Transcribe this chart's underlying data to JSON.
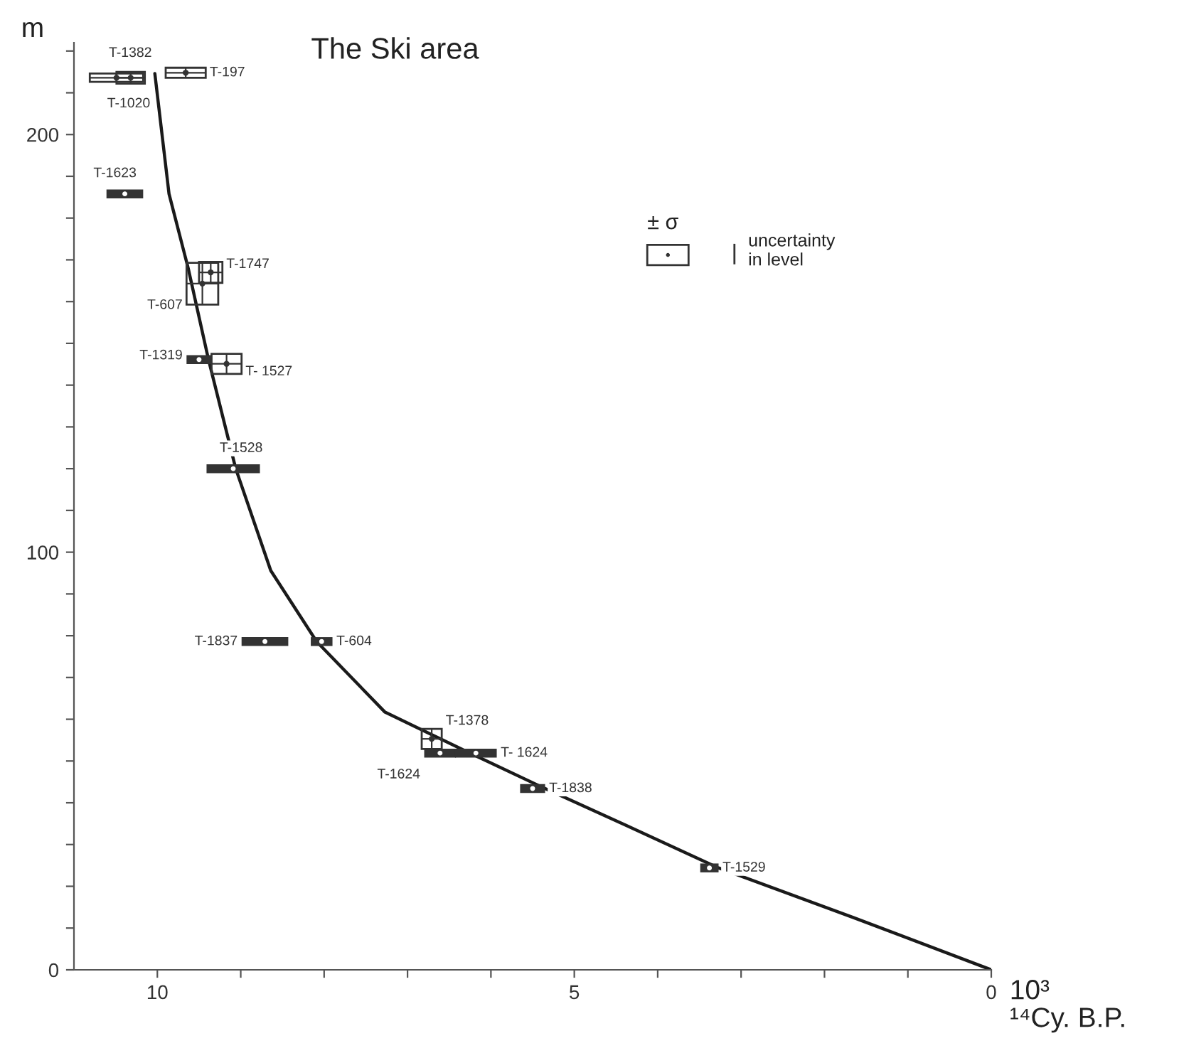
{
  "chart_data": {
    "type": "line",
    "title": "The Ski area",
    "ylabel": "m",
    "xlabel": "10³\n¹⁴Cy. B.P.",
    "xlim": [
      11.0,
      0
    ],
    "ylim": [
      0,
      222
    ],
    "xticks": [
      0,
      {
        "value": 1,
        "label": null
      },
      {
        "value": 2,
        "label": null
      },
      {
        "value": 3,
        "label": null
      },
      {
        "value": 4,
        "label": null
      },
      5,
      {
        "value": 6,
        "label": null
      },
      {
        "value": 7,
        "label": null
      },
      {
        "value": 8,
        "label": null
      },
      {
        "value": 9,
        "label": null
      },
      10
    ],
    "yticks": [
      0,
      {
        "value": 10,
        "label": null
      },
      {
        "value": 20,
        "label": null
      },
      {
        "value": 30,
        "label": null
      },
      {
        "value": 40,
        "label": null
      },
      {
        "value": 50,
        "label": null
      },
      {
        "value": 60,
        "label": null
      },
      {
        "value": 70,
        "label": null
      },
      {
        "value": 80,
        "label": null
      },
      {
        "value": 90,
        "label": null
      },
      100,
      {
        "value": 110,
        "label": null
      },
      {
        "value": 120,
        "label": null
      },
      {
        "value": 130,
        "label": null
      },
      {
        "value": 140,
        "label": null
      },
      {
        "value": 150,
        "label": null
      },
      {
        "value": 160,
        "label": null
      },
      {
        "value": 170,
        "label": null
      },
      {
        "value": 180,
        "label": null
      },
      {
        "value": 190,
        "label": null
      },
      200,
      {
        "value": 210,
        "label": null
      },
      {
        "value": 220,
        "label": null
      }
    ],
    "grid": false,
    "series": [
      {
        "color": "#1a1a1a",
        "x": [
          10.03,
          9.86,
          9.63,
          9.39,
          9.06,
          8.64,
          8.09,
          7.27,
          6.25,
          5.35,
          4.38,
          3.27,
          1.65,
          0
        ],
        "values": [
          214.6,
          185.8,
          168,
          146.4,
          120,
          95.6,
          78.6,
          61.7,
          51.9,
          43.4,
          34.6,
          24.4,
          12.5,
          0
        ]
      },
      {
        "type": "scatter",
        "color": "#333333",
        "x": [
          10.49,
          10.32,
          9.66,
          10.39,
          9.46,
          9.36,
          9.5,
          9.17,
          9.09,
          8.71,
          8.03,
          6.71,
          6.61,
          6.18,
          5.5,
          3.38
        ],
        "values": [
          213.6,
          213.6,
          214.8,
          185.8,
          164.3,
          167,
          146.1,
          145.1,
          120,
          78.6,
          78.6,
          55.3,
          51.9,
          51.9,
          43.4,
          24.4
        ],
        "xerrors": [
          0.32,
          0.17,
          0.24,
          0.22,
          0.19,
          0.14,
          0.15,
          0.18,
          0.32,
          0.28,
          0.13,
          0.12,
          0.19,
          0.25,
          0.15,
          0.11
        ],
        "errors": [
          1.0,
          1.4,
          1.2,
          null,
          5.0,
          2.5,
          null,
          2.4,
          null,
          null,
          null,
          2.4,
          null,
          null,
          null,
          null
        ],
        "value_labels": [
          "T-1382",
          "T-1020",
          "T-197",
          "T-1623",
          "T-607",
          "T-1747",
          "T-1319",
          "T- 1527",
          "T-1528",
          "T-1837",
          "T-604",
          "T-1378",
          "T-1624",
          "T- 1624",
          "T-1838",
          "T-1529"
        ]
      }
    ],
    "annotations": [
      "± σ",
      "uncertainty\nin level"
    ]
  }
}
